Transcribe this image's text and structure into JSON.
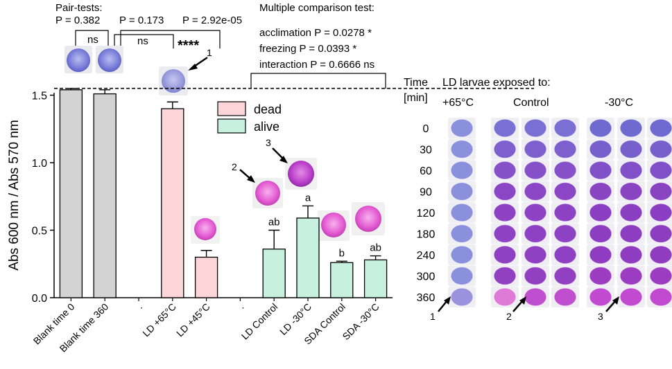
{
  "chart_data": {
    "type": "bar",
    "title": "",
    "xlabel": "",
    "ylabel": "Abs 600 nm / Abs 570 nm",
    "ylim": [
      0,
      1.6
    ],
    "yticks": [
      "0.0",
      "0.5",
      "1.0",
      "1.5"
    ],
    "reference_line": 1.54,
    "categories": [
      "Blank time 0",
      "Blank time 360",
      ".",
      "LD  +65°C",
      "LD +45°C",
      ".",
      "LD Control",
      "LD -30°C",
      "SDA Control",
      "SDA -30°C"
    ],
    "values": [
      1.54,
      1.51,
      null,
      1.4,
      0.3,
      null,
      0.36,
      0.59,
      0.26,
      0.28
    ],
    "errors": [
      0.01,
      0.03,
      null,
      0.05,
      0.05,
      null,
      0.14,
      0.09,
      0.01,
      0.03
    ],
    "groups": [
      "blank",
      "blank",
      "none",
      "dead",
      "dead",
      "none",
      "alive",
      "alive",
      "alive",
      "alive"
    ],
    "bar_letters": [
      "",
      "",
      "",
      "",
      "",
      "",
      "ab",
      "a",
      "b",
      "ab"
    ],
    "colors": {
      "blank": "#d3d3d3",
      "dead": "#fcd5d9",
      "alive": "#c7f0de"
    },
    "legend": [
      {
        "name": "dead",
        "color": "#fcd5d9"
      },
      {
        "name": "alive",
        "color": "#c7f0de"
      }
    ],
    "annotations": {
      "pair_title": "Pair-tests:",
      "p_pair1": "P = 0.382",
      "p_pair2": "P = 0.173",
      "p_pair3": "P = 2.92e-05",
      "ns1": "ns",
      "ns2": "ns",
      "stars": "****",
      "mc_title": "Multiple comparison test:",
      "mc_acclimation": "acclimation P = 0.0278 *",
      "mc_freezing": "freezing P = 0.0393 *",
      "mc_interaction": "interaction P = 0.6666 ns",
      "num1": "1",
      "num2": "2",
      "num3": "3"
    }
  },
  "wells_panel": {
    "title": "LD larvae exposed to:",
    "time_label_line1": "Time",
    "time_label_line2": "[min]",
    "columns": [
      "+65°C",
      "Control",
      "-30°C"
    ],
    "times": [
      "0",
      "30",
      "60",
      "90",
      "120",
      "180",
      "240",
      "300",
      "360"
    ],
    "arrow_labels": [
      "1",
      "2",
      "3"
    ],
    "colors": {
      "blue": "#8a90dc",
      "purple": "#8a3fc2",
      "pink": "#e05bd0"
    }
  }
}
